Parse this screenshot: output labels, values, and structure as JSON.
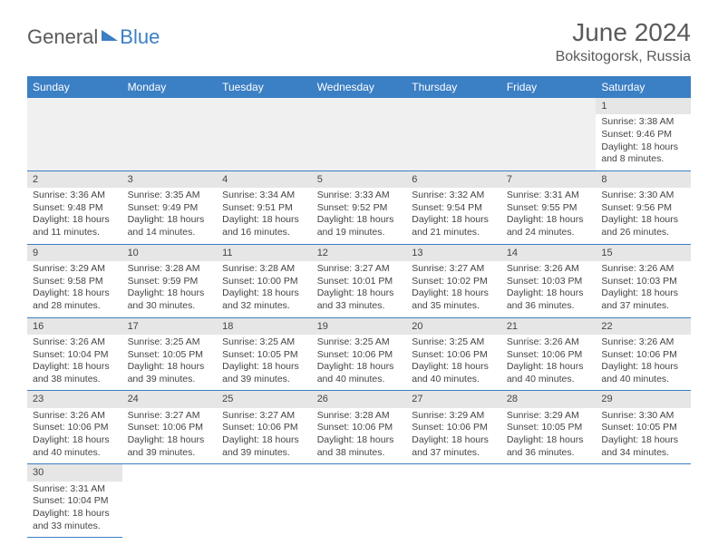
{
  "logo": {
    "general": "General",
    "blue": "Blue"
  },
  "title": "June 2024",
  "location": "Boksitogorsk, Russia",
  "colors": {
    "header_bg": "#3b7fc4",
    "header_text": "#ffffff",
    "daynum_bg": "#e6e6e6",
    "body_text": "#444444",
    "border": "#3b7fc4",
    "blank_bg": "#f0f0f0"
  },
  "typography": {
    "title_fontsize": 28,
    "location_fontsize": 16,
    "header_fontsize": 12,
    "cell_fontsize": 10.5
  },
  "layout": {
    "cols": 7,
    "rows": 6
  },
  "weekdays": [
    "Sunday",
    "Monday",
    "Tuesday",
    "Wednesday",
    "Thursday",
    "Friday",
    "Saturday"
  ],
  "days": {
    "1": {
      "sunrise": "3:38 AM",
      "sunset": "9:46 PM",
      "dl_h": 18,
      "dl_m": 8
    },
    "2": {
      "sunrise": "3:36 AM",
      "sunset": "9:48 PM",
      "dl_h": 18,
      "dl_m": 11
    },
    "3": {
      "sunrise": "3:35 AM",
      "sunset": "9:49 PM",
      "dl_h": 18,
      "dl_m": 14
    },
    "4": {
      "sunrise": "3:34 AM",
      "sunset": "9:51 PM",
      "dl_h": 18,
      "dl_m": 16
    },
    "5": {
      "sunrise": "3:33 AM",
      "sunset": "9:52 PM",
      "dl_h": 18,
      "dl_m": 19
    },
    "6": {
      "sunrise": "3:32 AM",
      "sunset": "9:54 PM",
      "dl_h": 18,
      "dl_m": 21
    },
    "7": {
      "sunrise": "3:31 AM",
      "sunset": "9:55 PM",
      "dl_h": 18,
      "dl_m": 24
    },
    "8": {
      "sunrise": "3:30 AM",
      "sunset": "9:56 PM",
      "dl_h": 18,
      "dl_m": 26
    },
    "9": {
      "sunrise": "3:29 AM",
      "sunset": "9:58 PM",
      "dl_h": 18,
      "dl_m": 28
    },
    "10": {
      "sunrise": "3:28 AM",
      "sunset": "9:59 PM",
      "dl_h": 18,
      "dl_m": 30
    },
    "11": {
      "sunrise": "3:28 AM",
      "sunset": "10:00 PM",
      "dl_h": 18,
      "dl_m": 32
    },
    "12": {
      "sunrise": "3:27 AM",
      "sunset": "10:01 PM",
      "dl_h": 18,
      "dl_m": 33
    },
    "13": {
      "sunrise": "3:27 AM",
      "sunset": "10:02 PM",
      "dl_h": 18,
      "dl_m": 35
    },
    "14": {
      "sunrise": "3:26 AM",
      "sunset": "10:03 PM",
      "dl_h": 18,
      "dl_m": 36
    },
    "15": {
      "sunrise": "3:26 AM",
      "sunset": "10:03 PM",
      "dl_h": 18,
      "dl_m": 37
    },
    "16": {
      "sunrise": "3:26 AM",
      "sunset": "10:04 PM",
      "dl_h": 18,
      "dl_m": 38
    },
    "17": {
      "sunrise": "3:25 AM",
      "sunset": "10:05 PM",
      "dl_h": 18,
      "dl_m": 39
    },
    "18": {
      "sunrise": "3:25 AM",
      "sunset": "10:05 PM",
      "dl_h": 18,
      "dl_m": 39
    },
    "19": {
      "sunrise": "3:25 AM",
      "sunset": "10:06 PM",
      "dl_h": 18,
      "dl_m": 40
    },
    "20": {
      "sunrise": "3:25 AM",
      "sunset": "10:06 PM",
      "dl_h": 18,
      "dl_m": 40
    },
    "21": {
      "sunrise": "3:26 AM",
      "sunset": "10:06 PM",
      "dl_h": 18,
      "dl_m": 40
    },
    "22": {
      "sunrise": "3:26 AM",
      "sunset": "10:06 PM",
      "dl_h": 18,
      "dl_m": 40
    },
    "23": {
      "sunrise": "3:26 AM",
      "sunset": "10:06 PM",
      "dl_h": 18,
      "dl_m": 40
    },
    "24": {
      "sunrise": "3:27 AM",
      "sunset": "10:06 PM",
      "dl_h": 18,
      "dl_m": 39
    },
    "25": {
      "sunrise": "3:27 AM",
      "sunset": "10:06 PM",
      "dl_h": 18,
      "dl_m": 39
    },
    "26": {
      "sunrise": "3:28 AM",
      "sunset": "10:06 PM",
      "dl_h": 18,
      "dl_m": 38
    },
    "27": {
      "sunrise": "3:29 AM",
      "sunset": "10:06 PM",
      "dl_h": 18,
      "dl_m": 37
    },
    "28": {
      "sunrise": "3:29 AM",
      "sunset": "10:05 PM",
      "dl_h": 18,
      "dl_m": 36
    },
    "29": {
      "sunrise": "3:30 AM",
      "sunset": "10:05 PM",
      "dl_h": 18,
      "dl_m": 34
    },
    "30": {
      "sunrise": "3:31 AM",
      "sunset": "10:04 PM",
      "dl_h": 18,
      "dl_m": 33
    }
  },
  "labels": {
    "sunrise_prefix": "Sunrise: ",
    "sunset_prefix": "Sunset: ",
    "daylight_prefix": "Daylight: ",
    "hours_word": " hours",
    "and_word": "and ",
    "minutes_word": " minutes."
  },
  "grid": [
    [
      null,
      null,
      null,
      null,
      null,
      null,
      "1"
    ],
    [
      "2",
      "3",
      "4",
      "5",
      "6",
      "7",
      "8"
    ],
    [
      "9",
      "10",
      "11",
      "12",
      "13",
      "14",
      "15"
    ],
    [
      "16",
      "17",
      "18",
      "19",
      "20",
      "21",
      "22"
    ],
    [
      "23",
      "24",
      "25",
      "26",
      "27",
      "28",
      "29"
    ],
    [
      "30",
      null,
      null,
      null,
      null,
      null,
      null
    ]
  ]
}
